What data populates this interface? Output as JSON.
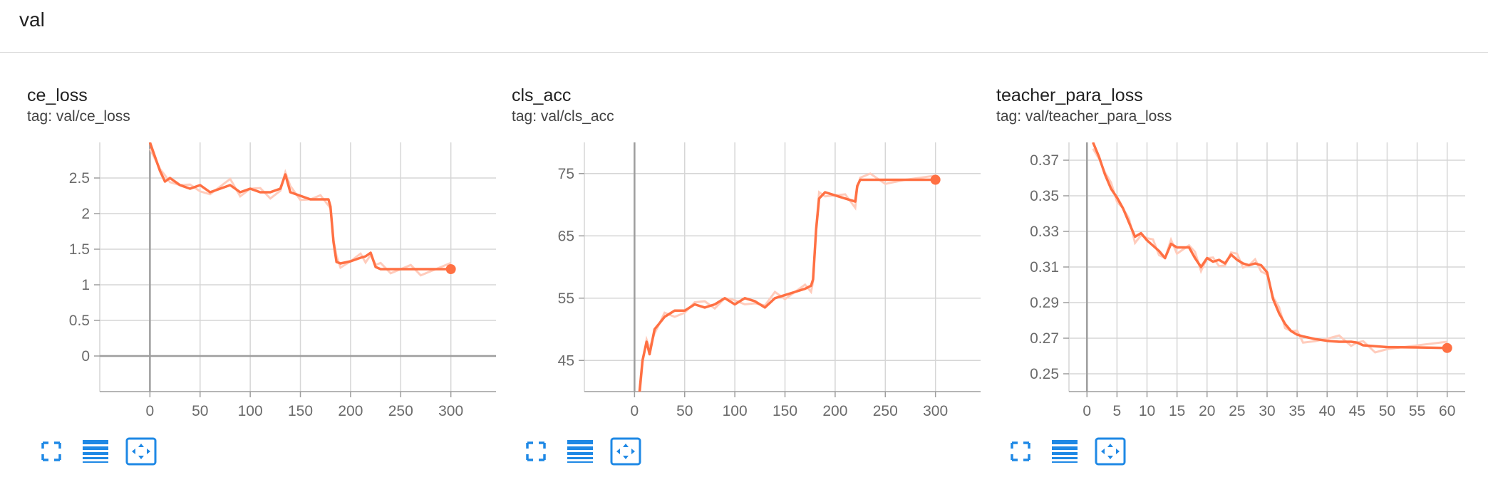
{
  "group": {
    "title": "val"
  },
  "colors": {
    "series": "#ff7043",
    "series_raw": "#ffccbc",
    "grid": "#d6d6d6",
    "axis": "#9e9e9e",
    "icon": "#1e88e5"
  },
  "cards": [
    {
      "title": "ce_loss",
      "tag": "tag: val/ce_loss"
    },
    {
      "title": "cls_acc",
      "tag": "tag: val/cls_acc"
    },
    {
      "title": "teacher_para_loss",
      "tag": "tag: val/teacher_para_loss"
    }
  ],
  "toolbar": {
    "icons": [
      "fullscreen-icon",
      "toggle-log-scale-icon",
      "fit-domain-icon"
    ]
  },
  "chart_data": [
    {
      "type": "line",
      "title": "ce_loss",
      "xlim": [
        -50,
        345
      ],
      "ylim": [
        -0.5,
        3.0
      ],
      "x_ticks": [
        0,
        50,
        100,
        150,
        200,
        250,
        300
      ],
      "y_ticks": [
        0,
        0.5,
        1,
        1.5,
        2,
        2.5
      ],
      "y_tick_labels": [
        "0",
        "0.5",
        "1",
        "1.5",
        "2",
        "2.5"
      ],
      "grid": true,
      "series": [
        {
          "x": [
            0,
            5,
            10,
            15,
            20,
            30,
            40,
            50,
            60,
            70,
            80,
            90,
            100,
            110,
            120,
            130,
            135,
            140,
            150,
            160,
            170,
            178,
            180,
            183,
            186,
            190,
            200,
            210,
            215,
            220,
            225,
            230,
            240,
            250,
            260,
            270,
            280,
            290,
            300
          ],
          "y": [
            3.0,
            2.8,
            2.6,
            2.45,
            2.5,
            2.4,
            2.35,
            2.4,
            2.3,
            2.35,
            2.4,
            2.3,
            2.35,
            2.3,
            2.3,
            2.35,
            2.55,
            2.3,
            2.25,
            2.2,
            2.2,
            2.2,
            2.1,
            1.6,
            1.32,
            1.3,
            1.33,
            1.38,
            1.4,
            1.45,
            1.25,
            1.22,
            1.22,
            1.22,
            1.22,
            1.22,
            1.22,
            1.22,
            1.22
          ]
        }
      ]
    },
    {
      "type": "line",
      "title": "cls_acc",
      "xlim": [
        -50,
        345
      ],
      "ylim": [
        40,
        80
      ],
      "x_ticks": [
        0,
        50,
        100,
        150,
        200,
        250,
        300
      ],
      "y_ticks": [
        45,
        55,
        65,
        75
      ],
      "y_tick_labels": [
        "45",
        "55",
        "65",
        "75"
      ],
      "grid": true,
      "series": [
        {
          "x": [
            5,
            8,
            12,
            15,
            20,
            25,
            30,
            40,
            50,
            60,
            70,
            80,
            90,
            100,
            110,
            120,
            130,
            140,
            150,
            160,
            170,
            176,
            178,
            181,
            184,
            190,
            200,
            210,
            220,
            222,
            225,
            235,
            250,
            270,
            300
          ],
          "y": [
            40,
            45,
            48,
            46,
            50,
            51,
            52,
            53,
            53,
            54,
            53.5,
            54,
            55,
            54,
            55,
            54.5,
            53.5,
            55,
            55.5,
            56,
            56.5,
            57,
            58,
            66,
            71,
            72,
            71.5,
            71,
            70.5,
            73,
            74,
            74,
            74,
            74,
            74
          ]
        }
      ]
    },
    {
      "type": "line",
      "title": "teacher_para_loss",
      "xlim": [
        -3,
        63
      ],
      "ylim": [
        0.24,
        0.38
      ],
      "x_ticks": [
        0,
        5,
        10,
        15,
        20,
        25,
        30,
        35,
        40,
        45,
        50,
        55,
        60
      ],
      "y_ticks": [
        0.25,
        0.27,
        0.29,
        0.31,
        0.33,
        0.35,
        0.37
      ],
      "y_tick_labels": [
        "0.25",
        "0.27",
        "0.29",
        "0.31",
        "0.33",
        "0.35",
        "0.37"
      ],
      "grid": true,
      "series": [
        {
          "x": [
            1,
            2,
            3,
            4,
            5,
            6,
            7,
            8,
            9,
            10,
            11,
            12,
            13,
            14,
            15,
            16,
            17,
            18,
            19,
            20,
            21,
            22,
            23,
            24,
            25,
            26,
            27,
            28,
            29,
            30,
            31,
            32,
            33,
            34,
            35,
            36,
            38,
            40,
            42,
            44,
            45,
            46,
            48,
            50,
            55,
            60
          ],
          "y": [
            0.38,
            0.372,
            0.362,
            0.354,
            0.349,
            0.343,
            0.335,
            0.327,
            0.329,
            0.325,
            0.322,
            0.319,
            0.315,
            0.323,
            0.321,
            0.321,
            0.321,
            0.315,
            0.31,
            0.315,
            0.313,
            0.314,
            0.312,
            0.317,
            0.314,
            0.312,
            0.311,
            0.312,
            0.311,
            0.307,
            0.292,
            0.284,
            0.278,
            0.274,
            0.272,
            0.271,
            0.2695,
            0.2685,
            0.268,
            0.268,
            0.2675,
            0.266,
            0.2655,
            0.265,
            0.2648,
            0.2645
          ]
        }
      ]
    }
  ]
}
